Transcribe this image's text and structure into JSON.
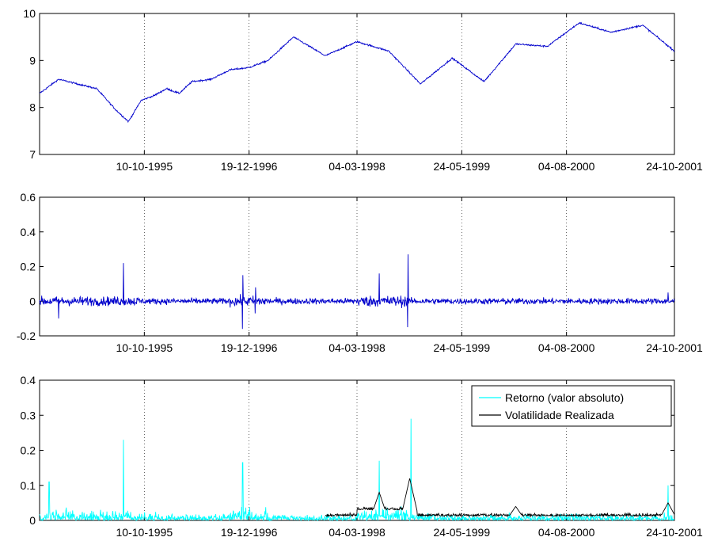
{
  "chart_data": [
    {
      "type": "line",
      "title": "",
      "xlabel": "",
      "ylabel": "",
      "x_tick_labels": [
        "10-10-1995",
        "19-12-1996",
        "04-03-1998",
        "24-05-1999",
        "04-08-2000",
        "24-10-2001"
      ],
      "ylim": [
        7,
        10
      ],
      "y_ticks": [
        "7",
        "8",
        "9",
        "10"
      ],
      "grid": "x-dotted",
      "series": [
        {
          "color": "#0000cc",
          "x": [
            0,
            3,
            6,
            9,
            12,
            14,
            16,
            17,
            18,
            20,
            22,
            24,
            27,
            30,
            33,
            36,
            40,
            45,
            50,
            55,
            60,
            65,
            70,
            75,
            80,
            85,
            90,
            95,
            100
          ],
          "y": [
            8.3,
            8.6,
            8.5,
            8.4,
            7.95,
            7.7,
            8.15,
            8.2,
            8.25,
            8.4,
            8.3,
            8.55,
            8.6,
            8.8,
            8.85,
            9.0,
            9.5,
            9.1,
            9.4,
            9.2,
            8.5,
            9.05,
            8.55,
            9.35,
            9.3,
            9.8,
            9.6,
            9.75,
            9.2
          ]
        }
      ]
    },
    {
      "type": "line",
      "title": "",
      "xlabel": "",
      "ylabel": "",
      "x_tick_labels": [
        "10-10-1995",
        "19-12-1996",
        "04-03-1998",
        "24-05-1999",
        "04-08-2000",
        "24-10-2001"
      ],
      "ylim": [
        -0.2,
        0.6
      ],
      "y_ticks": [
        "-0.2",
        "0",
        "0.2",
        "0.4",
        "0.6"
      ],
      "grid": "x-dotted",
      "series": [
        {
          "color": "#0000cc",
          "spikes": [
            {
              "x": 3,
              "high": 0.05,
              "low": -0.1
            },
            {
              "x": 13.2,
              "high": 0.22,
              "low": -0.09
            },
            {
              "x": 32,
              "high": 0.15,
              "low": -0.16
            },
            {
              "x": 34,
              "high": 0.08,
              "low": -0.07
            },
            {
              "x": 53.5,
              "high": 0.16,
              "low": -0.17
            },
            {
              "x": 58,
              "high": 0.27,
              "low": -0.15
            },
            {
              "x": 99,
              "high": 0.05,
              "low": -0.09
            }
          ]
        }
      ]
    },
    {
      "type": "line",
      "title": "",
      "xlabel": "",
      "ylabel": "",
      "x_tick_labels": [
        "10-10-1995",
        "19-12-1996",
        "04-03-1998",
        "24-05-1999",
        "04-08-2000",
        "24-10-2001"
      ],
      "ylim": [
        0,
        0.4
      ],
      "y_ticks": [
        "0",
        "0.1",
        "0.2",
        "0.3",
        "0.4"
      ],
      "grid": "x-dotted",
      "legend": {
        "position": "top-right"
      },
      "series": [
        {
          "name": "Retorno (valor absoluto)",
          "color": "#00ffff",
          "spikes": [
            {
              "x": 1.5,
              "high": 0.11
            },
            {
              "x": 13.2,
              "high": 0.23
            },
            {
              "x": 32,
              "high": 0.165
            },
            {
              "x": 53.5,
              "high": 0.17
            },
            {
              "x": 58.5,
              "high": 0.29
            },
            {
              "x": 99,
              "high": 0.1
            }
          ]
        },
        {
          "name": "Volatilidade Realizada",
          "color": "#000000",
          "x_start": 45,
          "spikes": [
            {
              "x": 53.5,
              "high": 0.08
            },
            {
              "x": 58.3,
              "high": 0.12
            },
            {
              "x": 75,
              "high": 0.04
            },
            {
              "x": 99,
              "high": 0.05
            }
          ]
        }
      ]
    }
  ]
}
